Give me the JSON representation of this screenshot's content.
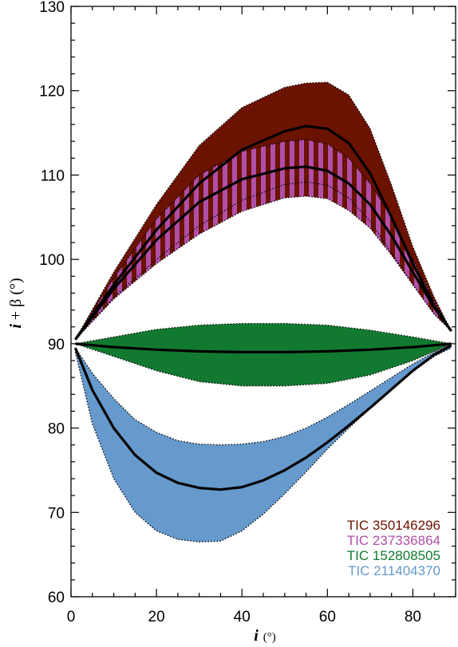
{
  "chart_data": {
    "type": "area",
    "xlabel_var": "i",
    "xlabel_unit": "(°)",
    "ylabel_var": "i",
    "ylabel_rest": " + β (°)",
    "xlim": [
      0,
      90
    ],
    "ylim": [
      60,
      130
    ],
    "x_ticks": [
      0,
      20,
      40,
      60,
      80
    ],
    "y_ticks": [
      60,
      70,
      80,
      90,
      100,
      110,
      120,
      130
    ],
    "grid": false,
    "legend_position": "bottom-right",
    "series": [
      {
        "name": "TIC 350146296",
        "color": "#6b1200",
        "fill": "solid",
        "x": [
          1,
          10,
          20,
          30,
          40,
          50,
          55,
          60,
          65,
          70,
          75,
          80,
          85,
          89
        ],
        "mid": [
          90.5,
          97.0,
          103.5,
          109.0,
          113.0,
          115.2,
          115.8,
          115.5,
          113.8,
          110.2,
          105.0,
          99.5,
          94.5,
          91.5
        ],
        "lower": [
          90.5,
          95.5,
          100.0,
          104.0,
          107.0,
          108.9,
          109.2,
          108.8,
          107.3,
          104.5,
          100.8,
          97.0,
          93.5,
          91.5
        ],
        "upper": [
          90.5,
          98.5,
          106.5,
          113.5,
          118.0,
          120.4,
          120.9,
          121.0,
          119.5,
          115.5,
          108.8,
          101.5,
          95.5,
          91.5
        ]
      },
      {
        "name": "TIC 237336864",
        "color": "#b04fa8",
        "fill": "hatched",
        "x": [
          1,
          10,
          20,
          30,
          40,
          50,
          55,
          60,
          65,
          70,
          75,
          80,
          85,
          89
        ],
        "mid": [
          90.5,
          96.5,
          102.3,
          106.8,
          109.5,
          110.8,
          111.0,
          110.5,
          109.0,
          106.5,
          102.8,
          98.5,
          94.3,
          91.5
        ],
        "lower": [
          90.5,
          95.3,
          99.5,
          103.0,
          105.7,
          107.3,
          107.5,
          107.2,
          105.8,
          103.7,
          100.5,
          97.0,
          93.5,
          91.5
        ],
        "upper": [
          90.5,
          97.8,
          104.8,
          110.0,
          112.8,
          114.0,
          114.2,
          113.7,
          112.0,
          109.0,
          105.0,
          100.0,
          95.0,
          91.5
        ]
      },
      {
        "name": "TIC 152808505",
        "color": "#127a30",
        "fill": "solid",
        "x": [
          1,
          10,
          20,
          30,
          40,
          50,
          60,
          70,
          80,
          89
        ],
        "mid": [
          90.0,
          89.6,
          89.3,
          89.1,
          89.0,
          89.0,
          89.1,
          89.3,
          89.6,
          90.0
        ],
        "lower": [
          90.0,
          88.5,
          86.8,
          85.5,
          85.0,
          85.0,
          85.3,
          86.3,
          88.0,
          90.0
        ],
        "upper": [
          90.0,
          90.8,
          91.7,
          92.2,
          92.4,
          92.4,
          92.2,
          91.6,
          90.8,
          90.0
        ]
      },
      {
        "name": "TIC 211404370",
        "color": "#6699cc",
        "fill": "solid",
        "x": [
          1,
          5,
          10,
          15,
          20,
          25,
          30,
          35,
          40,
          45,
          50,
          55,
          60,
          65,
          70,
          75,
          80,
          85,
          89
        ],
        "mid": [
          89.5,
          84.5,
          80.0,
          76.8,
          74.7,
          73.5,
          72.9,
          72.7,
          73.0,
          73.8,
          75.0,
          76.5,
          78.3,
          80.3,
          82.4,
          84.6,
          86.8,
          88.7,
          89.8
        ],
        "lower": [
          89.0,
          80.5,
          74.0,
          70.0,
          67.8,
          66.8,
          66.5,
          66.6,
          67.8,
          69.8,
          72.2,
          74.8,
          77.5,
          80.0,
          82.3,
          84.5,
          86.7,
          88.5,
          89.5
        ],
        "upper": [
          89.5,
          86.5,
          83.5,
          81.0,
          79.5,
          78.5,
          78.1,
          78.0,
          78.1,
          78.4,
          79.0,
          80.0,
          81.3,
          82.8,
          84.4,
          86.0,
          87.6,
          89.0,
          89.9
        ]
      }
    ]
  }
}
